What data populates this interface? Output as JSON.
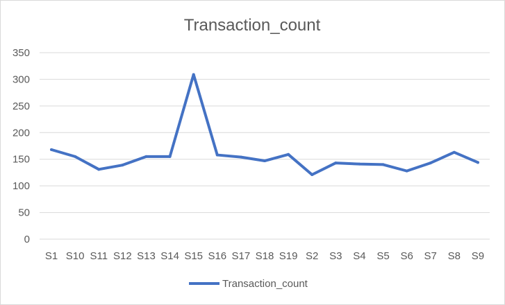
{
  "chart_data": {
    "type": "line",
    "title": "Transaction_count",
    "xlabel": "",
    "ylabel": "",
    "categories": [
      "S1",
      "S10",
      "S11",
      "S12",
      "S13",
      "S14",
      "S15",
      "S16",
      "S17",
      "S18",
      "S19",
      "S2",
      "S3",
      "S4",
      "S5",
      "S6",
      "S7",
      "S8",
      "S9"
    ],
    "series": [
      {
        "name": "Transaction_count",
        "values": [
          168,
          155,
          131,
          139,
          155,
          155,
          309,
          158,
          154,
          147,
          159,
          121,
          143,
          141,
          140,
          128,
          143,
          163,
          144
        ],
        "color": "#4472C4"
      }
    ],
    "ylim": [
      0,
      350
    ],
    "yticks": [
      0,
      50,
      100,
      150,
      200,
      250,
      300,
      350
    ],
    "grid": true,
    "legend": "bottom"
  }
}
